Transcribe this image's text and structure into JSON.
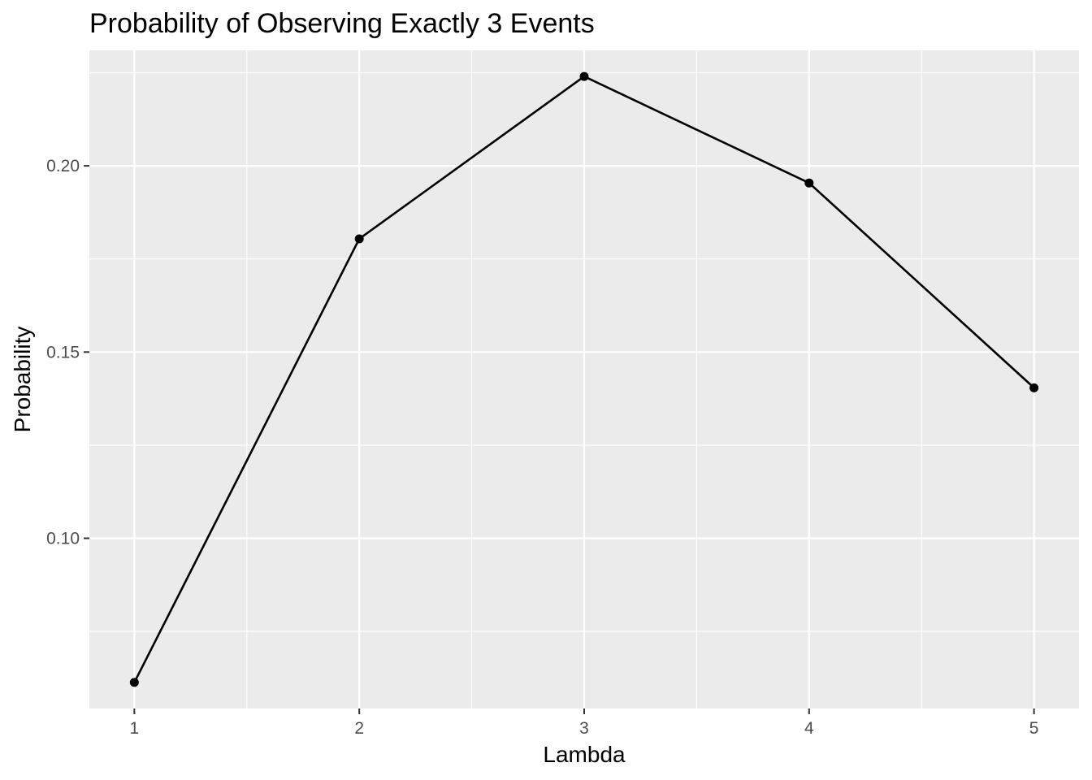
{
  "chart_data": {
    "type": "line",
    "title": "Probability of Observing Exactly 3 Events",
    "xlabel": "Lambda",
    "ylabel": "Probability",
    "x": [
      1,
      2,
      3,
      4,
      5
    ],
    "series": [
      {
        "values": [
          0.0613,
          0.1804,
          0.224,
          0.1954,
          0.1404
        ]
      }
    ],
    "xticks": [
      1,
      2,
      3,
      4,
      5
    ],
    "xtick_labels": [
      "1",
      "2",
      "3",
      "4",
      "5"
    ],
    "yticks": [
      0.1,
      0.15,
      0.2
    ],
    "ytick_labels": [
      "0.10",
      "0.15",
      "0.20"
    ],
    "xlim": [
      0.8,
      5.2
    ],
    "ylim": [
      0.0543,
      0.231
    ],
    "grid": true,
    "legend": "none",
    "colors": {
      "panel": "#ebebeb",
      "grid": "#ffffff",
      "line": "#000000",
      "point": "#000000",
      "tick_text": "#4d4d4d"
    }
  }
}
